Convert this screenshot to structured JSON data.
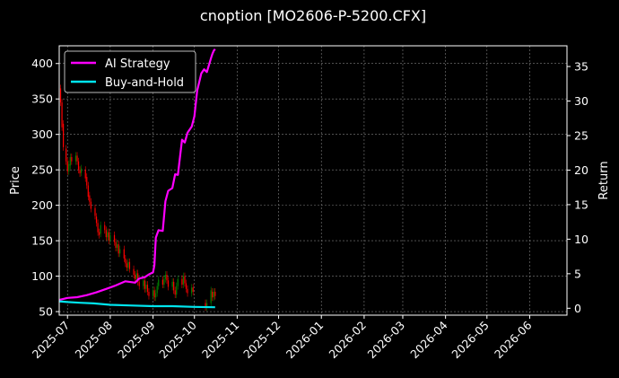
{
  "chart_data": {
    "type": "line",
    "title": "cnoption [MO2606-P-5200.CFX]",
    "ylabel": "Price",
    "y2label": "Return",
    "xlim": [
      "2025-06-25",
      "2026-06-28"
    ],
    "ylim": [
      45,
      425
    ],
    "y2lim": [
      -1,
      38
    ],
    "x_ticks": [
      "2025-07",
      "2025-08",
      "2025-09",
      "2025-10",
      "2025-11",
      "2025-12",
      "2026-01",
      "2026-02",
      "2026-03",
      "2026-04",
      "2026-05",
      "2026-06"
    ],
    "y_ticks": [
      50,
      100,
      150,
      200,
      250,
      300,
      350,
      400
    ],
    "y2_ticks": [
      0,
      5,
      10,
      15,
      20,
      25,
      30,
      35
    ],
    "grid": true,
    "legend_position": "top-left",
    "colors": {
      "ai_strategy": "#ff00ff",
      "buy_and_hold": "#00e5ee",
      "up": "#008000",
      "down": "#ff0000"
    },
    "series": [
      {
        "name": "AI Strategy",
        "axis": "right",
        "x": [
          "2025-06-25",
          "2025-07-01",
          "2025-07-08",
          "2025-07-15",
          "2025-07-22",
          "2025-07-29",
          "2025-08-05",
          "2025-08-12",
          "2025-08-19",
          "2025-08-22",
          "2025-08-26",
          "2025-08-29",
          "2025-09-01",
          "2025-09-02",
          "2025-09-03",
          "2025-09-05",
          "2025-09-08",
          "2025-09-10",
          "2025-09-12",
          "2025-09-15",
          "2025-09-17",
          "2025-09-19",
          "2025-09-22",
          "2025-09-24",
          "2025-09-26",
          "2025-09-29",
          "2025-10-01",
          "2025-10-03",
          "2025-10-06",
          "2025-10-08",
          "2025-10-10",
          "2025-10-13",
          "2025-10-14",
          "2025-10-15",
          "2025-10-16"
        ],
        "values": [
          1.2,
          1.5,
          1.6,
          1.9,
          2.3,
          2.8,
          3.3,
          3.9,
          3.7,
          4.3,
          4.5,
          4.9,
          5.2,
          6.2,
          10.2,
          11.3,
          11.2,
          15.5,
          17.0,
          17.4,
          19.4,
          19.3,
          24.4,
          24.0,
          25.4,
          26.3,
          27.8,
          31.5,
          34.0,
          34.6,
          34.2,
          36.2,
          36.8,
          37.3,
          37.5
        ]
      },
      {
        "name": "Buy-and-Hold",
        "axis": "right",
        "x": [
          "2025-06-25",
          "2025-07-01",
          "2025-07-10",
          "2025-07-20",
          "2025-08-01",
          "2025-08-15",
          "2025-09-01",
          "2025-09-15",
          "2025-10-01",
          "2025-10-16"
        ],
        "values": [
          1.0,
          0.9,
          0.8,
          0.7,
          0.5,
          0.4,
          0.3,
          0.3,
          0.2,
          0.15
        ]
      }
    ],
    "candles": [
      {
        "x": "2025-06-26",
        "o": 365,
        "c": 345
      },
      {
        "x": "2025-06-27",
        "o": 345,
        "c": 310
      },
      {
        "x": "2025-06-28",
        "o": 315,
        "c": 282
      },
      {
        "x": "2025-06-30",
        "o": 280,
        "c": 262
      },
      {
        "x": "2025-07-01",
        "o": 262,
        "c": 248
      },
      {
        "x": "2025-07-02",
        "o": 248,
        "c": 258
      },
      {
        "x": "2025-07-03",
        "o": 256,
        "c": 268
      },
      {
        "x": "2025-07-04",
        "o": 268,
        "c": 262
      },
      {
        "x": "2025-07-07",
        "o": 262,
        "c": 270
      },
      {
        "x": "2025-07-08",
        "o": 270,
        "c": 262
      },
      {
        "x": "2025-07-09",
        "o": 262,
        "c": 250
      },
      {
        "x": "2025-07-10",
        "o": 250,
        "c": 245
      },
      {
        "x": "2025-07-11",
        "o": 246,
        "c": 252
      },
      {
        "x": "2025-07-14",
        "o": 250,
        "c": 238
      },
      {
        "x": "2025-07-15",
        "o": 240,
        "c": 228
      },
      {
        "x": "2025-07-16",
        "o": 228,
        "c": 212
      },
      {
        "x": "2025-07-17",
        "o": 214,
        "c": 205
      },
      {
        "x": "2025-07-18",
        "o": 205,
        "c": 195
      },
      {
        "x": "2025-07-21",
        "o": 196,
        "c": 185
      },
      {
        "x": "2025-07-22",
        "o": 184,
        "c": 175
      },
      {
        "x": "2025-07-23",
        "o": 175,
        "c": 162
      },
      {
        "x": "2025-07-24",
        "o": 162,
        "c": 158
      },
      {
        "x": "2025-07-25",
        "o": 160,
        "c": 172
      },
      {
        "x": "2025-07-28",
        "o": 172,
        "c": 165
      },
      {
        "x": "2025-07-29",
        "o": 165,
        "c": 155
      },
      {
        "x": "2025-07-30",
        "o": 155,
        "c": 162
      },
      {
        "x": "2025-07-31",
        "o": 162,
        "c": 150
      },
      {
        "x": "2025-08-01",
        "o": 150,
        "c": 158
      },
      {
        "x": "2025-08-04",
        "o": 158,
        "c": 148
      },
      {
        "x": "2025-08-05",
        "o": 148,
        "c": 140
      },
      {
        "x": "2025-08-06",
        "o": 140,
        "c": 145
      },
      {
        "x": "2025-08-07",
        "o": 145,
        "c": 132
      },
      {
        "x": "2025-08-08",
        "o": 132,
        "c": 138
      },
      {
        "x": "2025-08-11",
        "o": 138,
        "c": 125
      },
      {
        "x": "2025-08-12",
        "o": 125,
        "c": 118
      },
      {
        "x": "2025-08-13",
        "o": 118,
        "c": 112
      },
      {
        "x": "2025-08-14",
        "o": 112,
        "c": 120
      },
      {
        "x": "2025-08-15",
        "o": 120,
        "c": 110
      },
      {
        "x": "2025-08-18",
        "o": 110,
        "c": 102
      },
      {
        "x": "2025-08-19",
        "o": 102,
        "c": 96
      },
      {
        "x": "2025-08-20",
        "o": 96,
        "c": 104
      },
      {
        "x": "2025-08-21",
        "o": 104,
        "c": 92
      },
      {
        "x": "2025-08-22",
        "o": 92,
        "c": 86
      },
      {
        "x": "2025-08-25",
        "o": 86,
        "c": 94
      },
      {
        "x": "2025-08-26",
        "o": 94,
        "c": 82
      },
      {
        "x": "2025-08-27",
        "o": 82,
        "c": 88
      },
      {
        "x": "2025-08-28",
        "o": 88,
        "c": 78
      },
      {
        "x": "2025-08-29",
        "o": 78,
        "c": 72
      },
      {
        "x": "2025-09-01",
        "o": 72,
        "c": 80
      },
      {
        "x": "2025-09-02",
        "o": 80,
        "c": 70
      },
      {
        "x": "2025-09-03",
        "o": 70,
        "c": 76
      },
      {
        "x": "2025-09-04",
        "o": 76,
        "c": 86
      },
      {
        "x": "2025-09-05",
        "o": 86,
        "c": 95
      },
      {
        "x": "2025-09-08",
        "o": 95,
        "c": 88
      },
      {
        "x": "2025-09-09",
        "o": 88,
        "c": 96
      },
      {
        "x": "2025-09-10",
        "o": 96,
        "c": 102
      },
      {
        "x": "2025-09-11",
        "o": 102,
        "c": 94
      },
      {
        "x": "2025-09-12",
        "o": 94,
        "c": 85
      },
      {
        "x": "2025-09-15",
        "o": 85,
        "c": 92
      },
      {
        "x": "2025-09-16",
        "o": 92,
        "c": 80
      },
      {
        "x": "2025-09-17",
        "o": 80,
        "c": 74
      },
      {
        "x": "2025-09-18",
        "o": 74,
        "c": 86
      },
      {
        "x": "2025-09-19",
        "o": 86,
        "c": 96
      },
      {
        "x": "2025-09-22",
        "o": 96,
        "c": 88
      },
      {
        "x": "2025-09-23",
        "o": 88,
        "c": 100
      },
      {
        "x": "2025-09-24",
        "o": 100,
        "c": 90
      },
      {
        "x": "2025-09-25",
        "o": 90,
        "c": 82
      },
      {
        "x": "2025-09-26",
        "o": 82,
        "c": 76
      },
      {
        "x": "2025-09-29",
        "o": 76,
        "c": 84
      },
      {
        "x": "2025-09-30",
        "o": 84,
        "c": 78
      },
      {
        "x": "2025-10-09",
        "o": 62,
        "c": 56
      },
      {
        "x": "2025-10-10",
        "o": 56,
        "c": 62
      },
      {
        "x": "2025-10-13",
        "o": 62,
        "c": 80
      },
      {
        "x": "2025-10-14",
        "o": 78,
        "c": 70
      },
      {
        "x": "2025-10-15",
        "o": 70,
        "c": 78
      },
      {
        "x": "2025-10-16",
        "o": 78,
        "c": 72
      }
    ]
  }
}
